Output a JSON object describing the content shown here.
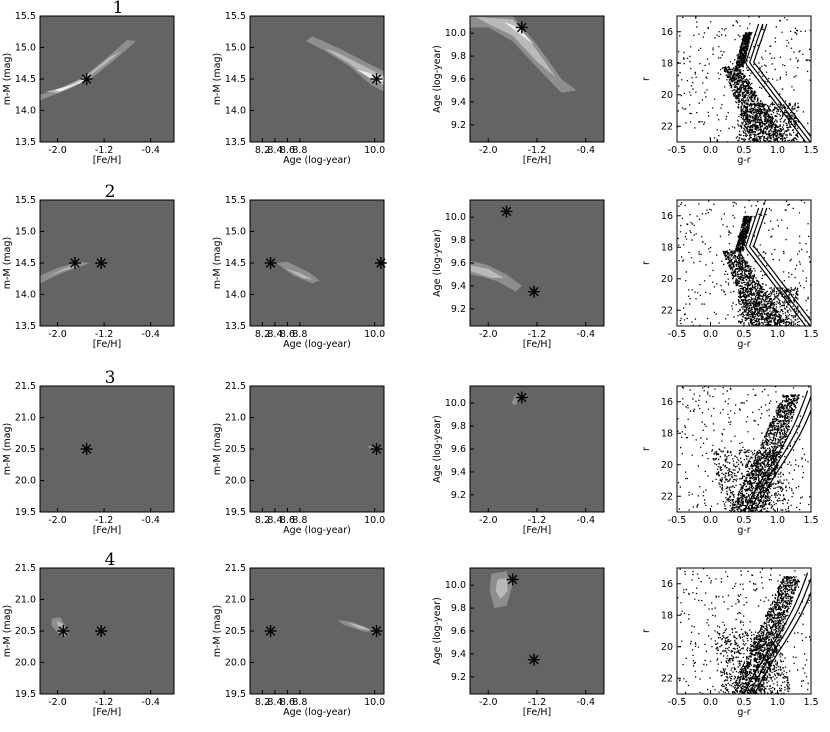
{
  "colors": {
    "background": "#646464",
    "contour_outer": "#8e8e8e",
    "contour_mid": "#b9b9b9",
    "contour_inner": "#ececec",
    "marker": "#000000"
  },
  "row_labels": [
    "1",
    "2",
    "3",
    "4"
  ],
  "axis_text": {
    "feh": {
      "label": "[Fe/H]",
      "ticks": [
        "-2.0",
        "-1.2",
        "-0.4"
      ]
    },
    "age": {
      "label": "Age (log-year)",
      "ticks": [
        "8.2",
        "8.4",
        "8.6",
        "8.8",
        "10.0"
      ]
    },
    "dm1": {
      "label": "m-M (mag)",
      "ticks": [
        "15.5",
        "15.0",
        "14.5",
        "14.0",
        "13.5"
      ]
    },
    "dm2": {
      "label": "m-M (mag)",
      "ticks": [
        "21.5",
        "21.0",
        "20.5",
        "20.0",
        "19.5"
      ]
    },
    "age_y": {
      "label": "Age (log-year)",
      "ticks": [
        "10.0",
        "9.8",
        "9.6",
        "9.4",
        "9.2"
      ]
    },
    "cmd_x": {
      "label": "g-r",
      "ticks": [
        "-0.5",
        "0.0",
        "0.5",
        "1.0",
        "1.5"
      ]
    },
    "cmd_y": {
      "label": "r",
      "ticks": [
        "16",
        "18",
        "20",
        "22"
      ]
    }
  },
  "chart_data": [
    {
      "type": "contour",
      "row": 1,
      "panel": "dm_vs_feh",
      "xlabel": "[Fe/H]",
      "ylabel": "m-M (mag)",
      "xlim": [
        -2.3,
        0.0
      ],
      "ylim": [
        13.5,
        15.5
      ],
      "markers": [
        {
          "x": -1.5,
          "y": 14.5
        }
      ],
      "regions": [
        {
          "level": 1,
          "poly": [
            [
              -2.3,
              14.25
            ],
            [
              -2.0,
              14.34
            ],
            [
              -1.6,
              14.5
            ],
            [
              -1.2,
              14.8
            ],
            [
              -0.8,
              15.12
            ],
            [
              -0.65,
              15.1
            ],
            [
              -1.0,
              14.82
            ],
            [
              -1.4,
              14.52
            ],
            [
              -1.8,
              14.34
            ],
            [
              -2.3,
              14.16
            ]
          ]
        },
        {
          "level": 2,
          "poly": [
            [
              -2.2,
              14.3
            ],
            [
              -1.9,
              14.36
            ],
            [
              -1.5,
              14.55
            ],
            [
              -1.1,
              14.85
            ],
            [
              -0.9,
              14.95
            ],
            [
              -1.2,
              14.72
            ],
            [
              -1.6,
              14.45
            ],
            [
              -2.0,
              14.28
            ]
          ]
        },
        {
          "level": 3,
          "poly": [
            [
              -2.05,
              14.33
            ],
            [
              -1.7,
              14.42
            ],
            [
              -1.45,
              14.55
            ],
            [
              -1.6,
              14.44
            ],
            [
              -1.95,
              14.3
            ]
          ]
        }
      ]
    },
    {
      "type": "contour",
      "row": 1,
      "panel": "dm_vs_age",
      "xlabel": "Age (log-year)",
      "ylabel": "m-M (mag)",
      "xlim": [
        8.0,
        10.15
      ],
      "ylim": [
        13.5,
        15.5
      ],
      "markers": [
        {
          "x": 10.03,
          "y": 14.5
        }
      ],
      "regions": [
        {
          "level": 1,
          "poly": [
            [
              8.9,
              15.1
            ],
            [
              9.2,
              14.95
            ],
            [
              9.6,
              14.7
            ],
            [
              9.95,
              14.4
            ],
            [
              10.15,
              14.3
            ],
            [
              10.15,
              14.62
            ],
            [
              9.8,
              14.8
            ],
            [
              9.4,
              15.0
            ],
            [
              9.0,
              15.18
            ]
          ]
        },
        {
          "level": 2,
          "poly": [
            [
              9.2,
              14.98
            ],
            [
              9.6,
              14.74
            ],
            [
              10.0,
              14.45
            ],
            [
              10.15,
              14.4
            ],
            [
              10.15,
              14.55
            ],
            [
              9.8,
              14.72
            ],
            [
              9.4,
              14.92
            ]
          ]
        },
        {
          "level": 3,
          "poly": [
            [
              9.7,
              14.65
            ],
            [
              10.05,
              14.45
            ],
            [
              10.15,
              14.46
            ],
            [
              10.15,
              14.52
            ],
            [
              9.9,
              14.6
            ]
          ]
        }
      ]
    },
    {
      "type": "contour",
      "row": 1,
      "panel": "age_vs_feh",
      "xlabel": "[Fe/H]",
      "ylabel": "Age (log-year)",
      "xlim": [
        -2.3,
        -0.1
      ],
      "ylim": [
        9.05,
        10.15
      ],
      "markers": [
        {
          "x": -1.45,
          "y": 10.05
        }
      ],
      "regions": [
        {
          "level": 1,
          "poly": [
            [
              -2.3,
              10.15
            ],
            [
              -1.6,
              10.15
            ],
            [
              -1.2,
              9.9
            ],
            [
              -0.8,
              9.6
            ],
            [
              -0.55,
              9.5
            ],
            [
              -0.8,
              9.48
            ],
            [
              -1.2,
              9.7
            ],
            [
              -1.6,
              9.93
            ],
            [
              -2.0,
              10.05
            ],
            [
              -2.3,
              10.05
            ]
          ]
        },
        {
          "level": 2,
          "poly": [
            [
              -2.2,
              10.14
            ],
            [
              -1.6,
              10.12
            ],
            [
              -1.2,
              9.85
            ],
            [
              -0.9,
              9.62
            ],
            [
              -1.2,
              9.75
            ],
            [
              -1.6,
              9.98
            ],
            [
              -2.0,
              10.08
            ]
          ]
        },
        {
          "level": 3,
          "poly": [
            [
              -1.75,
              10.1
            ],
            [
              -1.5,
              10.05
            ],
            [
              -1.25,
              9.9
            ],
            [
              -1.45,
              9.98
            ]
          ]
        }
      ]
    },
    {
      "type": "scatter",
      "row": 1,
      "panel": "cmd",
      "xlabel": "g-r",
      "ylabel": "r",
      "xlim": [
        -0.5,
        1.5
      ],
      "ylim": [
        23.0,
        15.0
      ],
      "sequence": "old"
    },
    {
      "type": "contour",
      "row": 2,
      "panel": "dm_vs_feh",
      "xlabel": "[Fe/H]",
      "ylabel": "m-M (mag)",
      "xlim": [
        -2.3,
        0.0
      ],
      "ylim": [
        13.5,
        15.5
      ],
      "markers": [
        {
          "x": -1.7,
          "y": 14.5
        },
        {
          "x": -1.25,
          "y": 14.5
        }
      ],
      "regions": [
        {
          "level": 1,
          "poly": [
            [
              -2.3,
              14.18
            ],
            [
              -1.9,
              14.35
            ],
            [
              -1.55,
              14.46
            ],
            [
              -1.45,
              14.5
            ],
            [
              -1.65,
              14.52
            ],
            [
              -2.0,
              14.42
            ],
            [
              -2.3,
              14.3
            ]
          ]
        },
        {
          "level": 2,
          "poly": [
            [
              -2.2,
              14.28
            ],
            [
              -1.9,
              14.38
            ],
            [
              -1.6,
              14.46
            ],
            [
              -1.8,
              14.44
            ],
            [
              -2.1,
              14.32
            ]
          ]
        }
      ]
    },
    {
      "type": "contour",
      "row": 2,
      "panel": "dm_vs_age",
      "xlabel": "Age (log-year)",
      "ylabel": "m-M (mag)",
      "xlim": [
        8.0,
        10.15
      ],
      "ylim": [
        13.5,
        15.5
      ],
      "markers": [
        {
          "x": 8.33,
          "y": 14.5
        },
        {
          "x": 10.1,
          "y": 14.5
        }
      ],
      "regions": [
        {
          "level": 1,
          "poly": [
            [
              8.42,
              14.5
            ],
            [
              8.7,
              14.3
            ],
            [
              9.0,
              14.18
            ],
            [
              9.12,
              14.22
            ],
            [
              8.95,
              14.35
            ],
            [
              8.6,
              14.52
            ]
          ]
        },
        {
          "level": 2,
          "poly": [
            [
              8.55,
              14.42
            ],
            [
              8.85,
              14.26
            ],
            [
              9.0,
              14.24
            ],
            [
              8.8,
              14.34
            ]
          ]
        }
      ]
    },
    {
      "type": "contour",
      "row": 2,
      "panel": "age_vs_feh",
      "xlabel": "[Fe/H]",
      "ylabel": "Age (log-year)",
      "xlim": [
        -2.3,
        -0.1
      ],
      "ylim": [
        9.05,
        10.15
      ],
      "markers": [
        {
          "x": -1.7,
          "y": 10.05
        },
        {
          "x": -1.25,
          "y": 9.35
        }
      ],
      "regions": [
        {
          "level": 1,
          "poly": [
            [
              -2.3,
              9.62
            ],
            [
              -2.0,
              9.58
            ],
            [
              -1.7,
              9.5
            ],
            [
              -1.45,
              9.4
            ],
            [
              -1.55,
              9.35
            ],
            [
              -1.85,
              9.44
            ],
            [
              -2.1,
              9.48
            ],
            [
              -2.3,
              9.5
            ]
          ]
        },
        {
          "level": 2,
          "poly": [
            [
              -2.3,
              9.58
            ],
            [
              -2.0,
              9.55
            ],
            [
              -1.75,
              9.47
            ],
            [
              -1.95,
              9.47
            ],
            [
              -2.3,
              9.53
            ]
          ]
        }
      ]
    },
    {
      "type": "scatter",
      "row": 2,
      "panel": "cmd",
      "xlabel": "g-r",
      "ylabel": "r",
      "xlim": [
        -0.5,
        1.5
      ],
      "ylim": [
        23.0,
        15.0
      ],
      "sequence": "old"
    },
    {
      "type": "contour",
      "row": 3,
      "panel": "dm_vs_feh",
      "xlabel": "[Fe/H]",
      "ylabel": "m-M (mag)",
      "xlim": [
        -2.3,
        0.0
      ],
      "ylim": [
        19.5,
        21.5
      ],
      "markers": [
        {
          "x": -1.5,
          "y": 20.5
        }
      ],
      "regions": []
    },
    {
      "type": "contour",
      "row": 3,
      "panel": "dm_vs_age",
      "xlabel": "Age (log-year)",
      "ylabel": "m-M (mag)",
      "xlim": [
        8.0,
        10.15
      ],
      "ylim": [
        19.5,
        21.5
      ],
      "markers": [
        {
          "x": 10.03,
          "y": 20.5
        }
      ],
      "regions": [
        {
          "level": 1,
          "poly": [
            [
              9.88,
              20.56
            ],
            [
              10.0,
              20.53
            ],
            [
              10.03,
              20.48
            ],
            [
              9.92,
              20.5
            ]
          ]
        }
      ]
    },
    {
      "type": "contour",
      "row": 3,
      "panel": "age_vs_feh",
      "xlabel": "[Fe/H]",
      "ylabel": "Age (log-year)",
      "xlim": [
        -2.3,
        -0.1
      ],
      "ylim": [
        9.05,
        10.15
      ],
      "markers": [
        {
          "x": -1.45,
          "y": 10.05
        }
      ],
      "regions": [
        {
          "level": 1,
          "poly": [
            [
              -1.62,
              10.0
            ],
            [
              -1.55,
              10.08
            ],
            [
              -1.48,
              10.06
            ],
            [
              -1.55,
              9.98
            ]
          ]
        }
      ]
    },
    {
      "type": "scatter",
      "row": 3,
      "panel": "cmd",
      "xlabel": "g-r",
      "ylabel": "r",
      "xlim": [
        -0.5,
        1.5
      ],
      "ylim": [
        23.0,
        15.0
      ],
      "sequence": "young"
    },
    {
      "type": "contour",
      "row": 4,
      "panel": "dm_vs_feh",
      "xlabel": "[Fe/H]",
      "ylabel": "m-M (mag)",
      "xlim": [
        -2.3,
        0.0
      ],
      "ylim": [
        19.5,
        21.5
      ],
      "markers": [
        {
          "x": -1.9,
          "y": 20.5
        },
        {
          "x": -1.25,
          "y": 20.5
        }
      ],
      "regions": [
        {
          "level": 1,
          "poly": [
            [
              -2.1,
              20.7
            ],
            [
              -1.95,
              20.72
            ],
            [
              -1.85,
              20.55
            ],
            [
              -1.8,
              20.42
            ],
            [
              -1.95,
              20.42
            ],
            [
              -2.1,
              20.58
            ]
          ]
        },
        {
          "level": 2,
          "poly": [
            [
              -2.02,
              20.66
            ],
            [
              -1.92,
              20.62
            ],
            [
              -1.86,
              20.5
            ],
            [
              -1.98,
              20.55
            ]
          ]
        }
      ]
    },
    {
      "type": "contour",
      "row": 4,
      "panel": "dm_vs_age",
      "xlabel": "Age (log-year)",
      "ylabel": "m-M (mag)",
      "xlim": [
        8.0,
        10.15
      ],
      "ylim": [
        19.5,
        21.5
      ],
      "markers": [
        {
          "x": 8.33,
          "y": 20.5
        },
        {
          "x": 10.03,
          "y": 20.5
        }
      ],
      "regions": [
        {
          "level": 1,
          "poly": [
            [
              9.4,
              20.68
            ],
            [
              9.65,
              20.64
            ],
            [
              9.95,
              20.52
            ],
            [
              10.05,
              20.46
            ],
            [
              9.8,
              20.5
            ],
            [
              9.5,
              20.6
            ]
          ]
        },
        {
          "level": 2,
          "poly": [
            [
              9.55,
              20.64
            ],
            [
              9.8,
              20.58
            ],
            [
              9.95,
              20.51
            ],
            [
              9.75,
              20.54
            ]
          ]
        }
      ]
    },
    {
      "type": "contour",
      "row": 4,
      "panel": "age_vs_feh",
      "xlabel": "[Fe/H]",
      "ylabel": "Age (log-year)",
      "xlim": [
        -2.3,
        -0.1
      ],
      "ylim": [
        9.05,
        10.15
      ],
      "markers": [
        {
          "x": -1.6,
          "y": 10.05
        },
        {
          "x": -1.25,
          "y": 9.35
        }
      ],
      "regions": [
        {
          "level": 1,
          "poly": [
            [
              -1.95,
              10.1
            ],
            [
              -1.7,
              10.12
            ],
            [
              -1.6,
              10.0
            ],
            [
              -1.7,
              9.82
            ],
            [
              -1.9,
              9.8
            ],
            [
              -1.98,
              9.95
            ]
          ]
        },
        {
          "level": 2,
          "poly": [
            [
              -1.85,
              10.05
            ],
            [
              -1.7,
              10.06
            ],
            [
              -1.68,
              9.95
            ],
            [
              -1.8,
              9.88
            ],
            [
              -1.88,
              9.95
            ]
          ]
        }
      ]
    },
    {
      "type": "scatter",
      "row": 4,
      "panel": "cmd",
      "xlabel": "g-r",
      "ylabel": "r",
      "xlim": [
        -0.5,
        1.5
      ],
      "ylim": [
        23.0,
        15.0
      ],
      "sequence": "young"
    }
  ]
}
